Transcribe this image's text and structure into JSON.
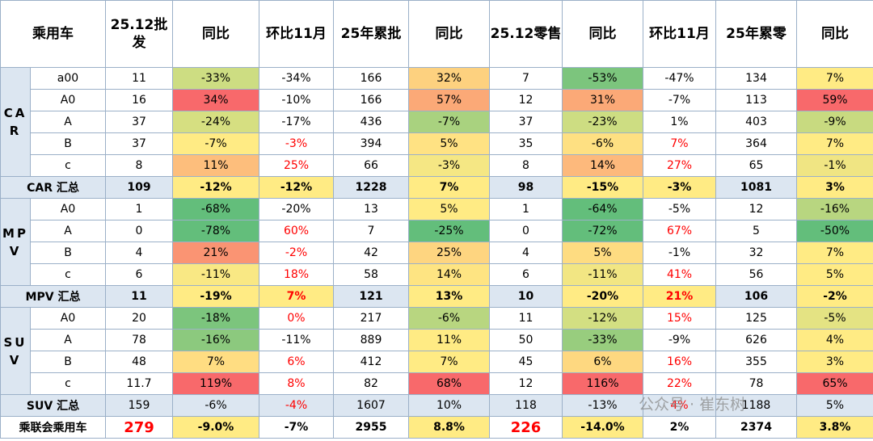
{
  "table": {
    "header": [
      "乘用车",
      "25.12批发",
      "同比",
      "环比11月",
      "25年累批",
      "同比",
      "25.12零售",
      "同比",
      "环比11月",
      "25年累零",
      "同比"
    ],
    "groups": [
      {
        "label": "CAR",
        "rows": [
          {
            "label": "a00",
            "cells": [
              "11",
              "-33%",
              "-34%",
              "166",
              "32%",
              "7",
              "-53%",
              "-47%",
              "134",
              "7%"
            ],
            "bg": [
              null,
              "#cddd82",
              null,
              null,
              "#fdd17f",
              null,
              "#7cc57d",
              null,
              null,
              "#ffeb84"
            ]
          },
          {
            "label": "A0",
            "cells": [
              "16",
              "34%",
              "-10%",
              "166",
              "57%",
              "12",
              "31%",
              "-7%",
              "113",
              "59%"
            ],
            "bg": [
              null,
              "#f8696b",
              null,
              null,
              "#fba977",
              null,
              "#fba977",
              null,
              null,
              "#f8696b"
            ]
          },
          {
            "label": "A",
            "cells": [
              "37",
              "-24%",
              "-17%",
              "436",
              "-7%",
              "37",
              "-23%",
              "1%",
              "403",
              "-9%"
            ],
            "bg": [
              null,
              "#d6df81",
              null,
              null,
              "#a9d27f",
              null,
              "#cddd82",
              null,
              null,
              "#c8da80"
            ]
          },
          {
            "label": "B",
            "cells": [
              "37",
              "-7%",
              "-3%",
              "394",
              "5%",
              "35",
              "-6%",
              "7%",
              "364",
              "7%"
            ],
            "bg": [
              null,
              "#ffeb84",
              null,
              null,
              "#ffe283",
              null,
              "#fee082",
              null,
              null,
              "#ffeb84"
            ],
            "text_colors": [
              null,
              null,
              "#ff0000",
              null,
              null,
              null,
              null,
              "#ff0000",
              null,
              null
            ]
          },
          {
            "label": "c",
            "cells": [
              "8",
              "11%",
              "25%",
              "66",
              "-3%",
              "8",
              "14%",
              "27%",
              "65",
              "-1%"
            ],
            "bg": [
              null,
              "#fdbe7c",
              null,
              null,
              "#f5e784",
              null,
              "#fdb97c",
              null,
              null,
              "#f0e583"
            ],
            "text_colors": [
              null,
              null,
              "#ff0000",
              null,
              null,
              null,
              null,
              "#ff0000",
              null,
              null
            ]
          }
        ],
        "total": {
          "label": "CAR 汇总",
          "cells": [
            "109",
            "-12%",
            "-12%",
            "1228",
            "7%",
            "98",
            "-15%",
            "-3%",
            "1081",
            "3%"
          ],
          "bg": [
            null,
            "#ffeb84",
            "#ffeb84",
            null,
            "#ffeb84",
            null,
            "#ffeb84",
            "#ffeb84",
            null,
            "#ffeb84"
          ],
          "bold": true
        }
      },
      {
        "label": "MPV",
        "rows": [
          {
            "label": "A0",
            "cells": [
              "1",
              "-68%",
              "-20%",
              "13",
              "5%",
              "1",
              "-64%",
              "-5%",
              "12",
              "-16%"
            ],
            "bg": [
              null,
              "#63be7b",
              null,
              null,
              "#ffeb84",
              null,
              "#63be7b",
              null,
              null,
              "#b8d680"
            ]
          },
          {
            "label": "A",
            "cells": [
              "0",
              "-78%",
              "60%",
              "7",
              "-25%",
              "0",
              "-72%",
              "67%",
              "5",
              "-50%"
            ],
            "bg": [
              null,
              "#63be7b",
              null,
              null,
              "#63be7b",
              null,
              "#63be7b",
              null,
              null,
              "#63be7b"
            ],
            "text_colors": [
              null,
              null,
              "#ff0000",
              null,
              null,
              null,
              null,
              "#ff0000",
              null,
              null
            ]
          },
          {
            "label": "B",
            "cells": [
              "4",
              "21%",
              "-2%",
              "42",
              "25%",
              "4",
              "5%",
              "-1%",
              "32",
              "7%"
            ],
            "bg": [
              null,
              "#fa9473",
              null,
              null,
              "#fed580",
              null,
              "#fedc81",
              null,
              null,
              "#ffeb84"
            ],
            "text_colors": [
              null,
              null,
              "#ff0000",
              null,
              null,
              null,
              null,
              null,
              null,
              null
            ]
          },
          {
            "label": "c",
            "cells": [
              "6",
              "-11%",
              "18%",
              "58",
              "14%",
              "6",
              "-11%",
              "41%",
              "56",
              "5%"
            ],
            "bg": [
              null,
              "#f9e884",
              null,
              null,
              "#fee482",
              null,
              "#f2e683",
              null,
              null,
              "#ffeb84"
            ],
            "text_colors": [
              null,
              null,
              "#ff0000",
              null,
              null,
              null,
              null,
              "#ff0000",
              null,
              null
            ]
          }
        ],
        "total": {
          "label": "MPV 汇总",
          "cells": [
            "11",
            "-19%",
            "7%",
            "121",
            "13%",
            "10",
            "-20%",
            "21%",
            "106",
            "-2%"
          ],
          "bg": [
            null,
            "#ffeb84",
            "#ffeb84",
            null,
            "#ffeb84",
            null,
            "#ffeb84",
            "#ffeb84",
            null,
            "#ffeb84"
          ],
          "text_colors": [
            null,
            null,
            "#ff0000",
            null,
            null,
            null,
            null,
            "#ff0000",
            null,
            null
          ],
          "bold": true
        }
      },
      {
        "label": "SUV",
        "rows": [
          {
            "label": "A0",
            "cells": [
              "20",
              "-18%",
              "0%",
              "217",
              "-6%",
              "11",
              "-12%",
              "15%",
              "125",
              "-5%"
            ],
            "bg": [
              null,
              "#7cc57d",
              null,
              null,
              "#b8d680",
              null,
              "#d3df82",
              null,
              null,
              "#e4e383"
            ],
            "text_colors": [
              null,
              null,
              "#ff0000",
              null,
              null,
              null,
              null,
              "#ff0000",
              null,
              null
            ]
          },
          {
            "label": "A",
            "cells": [
              "78",
              "-16%",
              "-11%",
              "889",
              "11%",
              "50",
              "-33%",
              "-9%",
              "626",
              "4%"
            ],
            "bg": [
              null,
              "#8cc97e",
              null,
              null,
              "#ffeb84",
              null,
              "#98cd7e",
              null,
              null,
              "#ffeb84"
            ]
          },
          {
            "label": "B",
            "cells": [
              "48",
              "7%",
              "6%",
              "412",
              "7%",
              "45",
              "6%",
              "16%",
              "355",
              "3%"
            ],
            "bg": [
              null,
              "#ffdd82",
              null,
              null,
              "#ffeb84",
              null,
              "#fed880",
              null,
              null,
              "#ffeb84"
            ],
            "text_colors": [
              null,
              null,
              "#ff0000",
              null,
              null,
              null,
              null,
              "#ff0000",
              null,
              null
            ]
          },
          {
            "label": "c",
            "cells": [
              "11.7",
              "119%",
              "8%",
              "82",
              "68%",
              "12",
              "116%",
              "22%",
              "78",
              "65%"
            ],
            "bg": [
              null,
              "#f8696b",
              null,
              null,
              "#f8696b",
              null,
              "#f8696b",
              null,
              null,
              "#f8696b"
            ],
            "text_colors": [
              null,
              null,
              "#ff0000",
              null,
              null,
              null,
              null,
              "#ff0000",
              null,
              null
            ]
          }
        ],
        "total": {
          "label": "SUV 汇总",
          "cells": [
            "159",
            "-6%",
            "-4%",
            "1607",
            "10%",
            "118",
            "-13%",
            "4%",
            "1188",
            "5%"
          ],
          "text_colors": [
            null,
            null,
            "#ff0000",
            null,
            null,
            null,
            null,
            "#ff0000",
            null,
            null
          ],
          "bold": false
        }
      }
    ],
    "grand_total": {
      "label": "乘联会乘用车",
      "cells": [
        "279",
        "-9.0%",
        "-7%",
        "2955",
        "8.8%",
        "226",
        "-14.0%",
        "2%",
        "2374",
        "3.8%"
      ],
      "bg": [
        null,
        "#ffeb84",
        null,
        null,
        "#ffeb84",
        null,
        "#ffeb84",
        null,
        null,
        "#ffeb84"
      ],
      "text_colors": [
        "#ff0000",
        null,
        null,
        null,
        null,
        "#ff0000",
        null,
        null,
        null,
        null
      ],
      "bold": true
    }
  },
  "watermark": "公众号 · 崔东树"
}
